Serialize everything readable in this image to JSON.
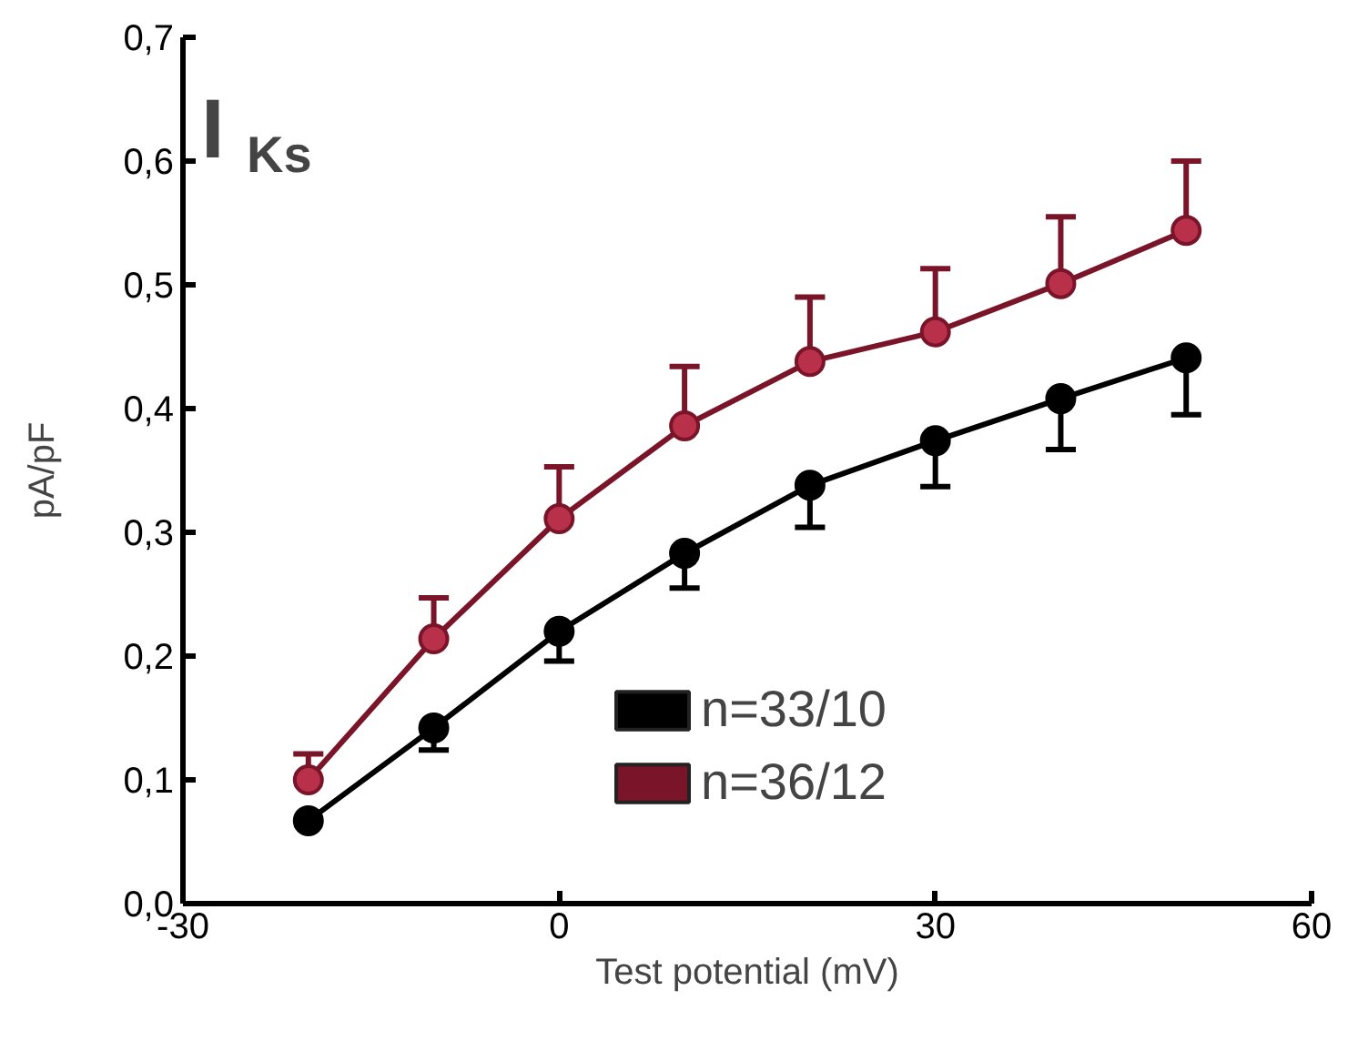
{
  "chart_data": {
    "type": "line",
    "title": "I$_{Ks}$",
    "xlabel": "Test potential (mV)",
    "ylabel": "pA/pF",
    "x": [
      -20,
      -10,
      0,
      10,
      20,
      30,
      40,
      50
    ],
    "series": [
      {
        "name": "n=33/10",
        "color": "#000000",
        "values": [
          0.067,
          0.142,
          0.22,
          0.283,
          0.338,
          0.374,
          0.408,
          0.441
        ],
        "errors": [
          null,
          [
            0.124,
            0.142
          ],
          [
            0.196,
            0.22
          ],
          [
            0.255,
            0.283
          ],
          [
            0.304,
            0.338
          ],
          [
            0.337,
            0.374
          ],
          [
            0.367,
            0.408
          ],
          [
            0.395,
            0.441
          ]
        ]
      },
      {
        "name": "n=36/12",
        "color": "#7a1428",
        "values": [
          0.1,
          0.214,
          0.311,
          0.386,
          0.438,
          0.462,
          0.501,
          0.544
        ],
        "errors": [
          [
            0.1,
            0.121
          ],
          [
            0.214,
            0.247
          ],
          [
            0.311,
            0.353
          ],
          [
            0.386,
            0.434
          ],
          [
            0.438,
            0.49
          ],
          [
            0.462,
            0.513
          ],
          [
            0.501,
            0.555
          ],
          [
            0.544,
            0.6
          ]
        ]
      }
    ],
    "xlim": [
      -30,
      60
    ],
    "xticks": [
      -30,
      0,
      30,
      60
    ],
    "ylim": [
      0,
      0.7
    ],
    "yticks": [
      {
        "value": 0,
        "label": "0,0"
      },
      {
        "value": 0.1,
        "label": "0,1"
      },
      {
        "value": 0.2,
        "label": "0,2"
      },
      {
        "value": 0.3,
        "label": "0,3"
      },
      {
        "value": 0.4,
        "label": "0,4"
      },
      {
        "value": 0.5,
        "label": "0,5"
      },
      {
        "value": 0.6,
        "label": "0,6"
      },
      {
        "value": 0.7,
        "label": "0,7"
      }
    ],
    "grid": false,
    "legend": "bottom",
    "marker": "circle",
    "line_style": "solid"
  }
}
